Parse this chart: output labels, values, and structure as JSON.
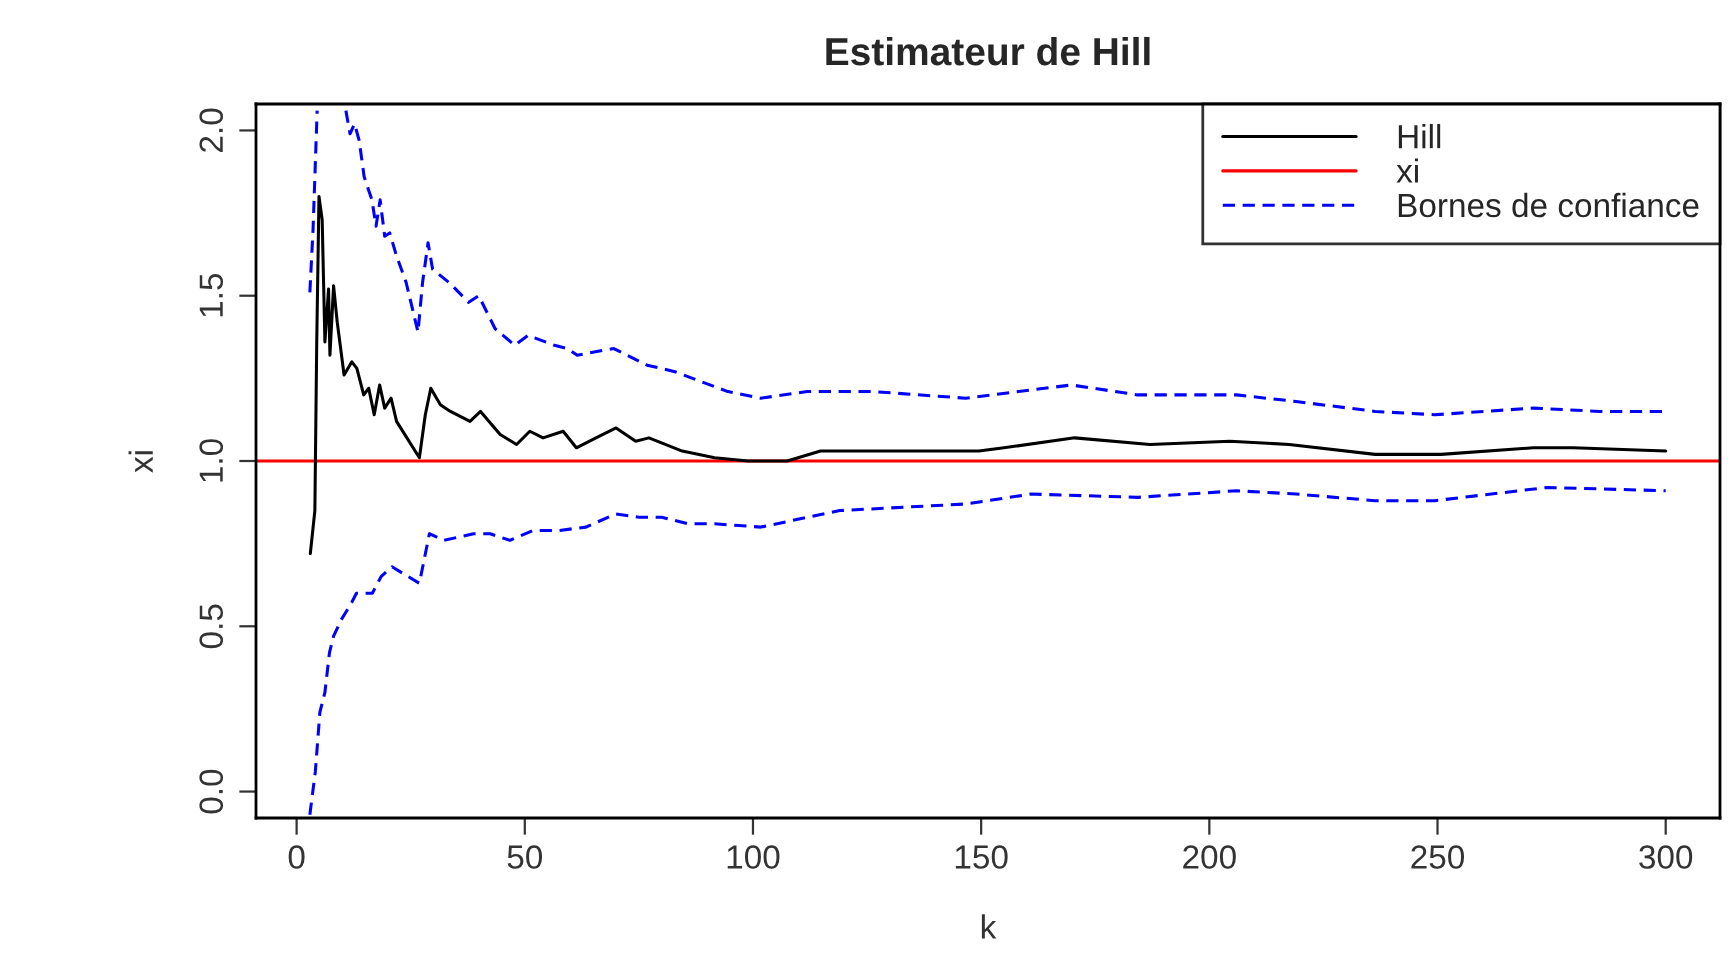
{
  "chart_data": {
    "type": "line",
    "title": "Estimateur de Hill",
    "xlabel": "k",
    "ylabel": "xi",
    "xlim": [
      -8.9,
      311.9
    ],
    "ylim": [
      -0.08,
      2.08
    ],
    "xticks": [
      0,
      50,
      100,
      150,
      200,
      250,
      300
    ],
    "yticks": [
      {
        "value": 0,
        "label": "0.0"
      },
      {
        "value": 0.5,
        "label": "0.5"
      },
      {
        "value": 1,
        "label": "1.0"
      },
      {
        "value": 1.5,
        "label": "1.5"
      },
      {
        "value": 2,
        "label": "2.0"
      }
    ],
    "grid": false,
    "legend": "top right",
    "ref_lines": [
      {
        "axis": "y",
        "value": 1,
        "label": "xi",
        "color": "#ff0000",
        "line_style": "solid"
      }
    ],
    "series": [
      {
        "name": "Hill",
        "color": "#000000",
        "line_style": "solid",
        "x": [
          3,
          4,
          4.4,
          4.9,
          5.6,
          6.2,
          7.0,
          7.3,
          8.1,
          8.9,
          10.4,
          12.1,
          13.2,
          14.7,
          15.8,
          17,
          18.2,
          19.3,
          20.7,
          21.9,
          26.9,
          28.2,
          29.4,
          31.5,
          33.7,
          38,
          40.3,
          44.6,
          48.2,
          51.1,
          54,
          58.4,
          61.3,
          65.6,
          70,
          74.3,
          77.2,
          84.5,
          91.6,
          98.9,
          107.5,
          114.8,
          132,
          149.5,
          155,
          170.5,
          187,
          204.5,
          217.5,
          236.3,
          250.8,
          271,
          279.7,
          300
        ],
        "values": [
          0.72,
          0.85,
          1.35,
          1.8,
          1.73,
          1.36,
          1.52,
          1.32,
          1.53,
          1.42,
          1.26,
          1.3,
          1.28,
          1.2,
          1.22,
          1.14,
          1.23,
          1.16,
          1.19,
          1.12,
          1.01,
          1.14,
          1.22,
          1.17,
          1.15,
          1.12,
          1.15,
          1.08,
          1.05,
          1.09,
          1.07,
          1.09,
          1.04,
          1.07,
          1.1,
          1.06,
          1.07,
          1.03,
          1.01,
          1.0,
          1.0,
          1.03,
          1.03,
          1.03,
          1.04,
          1.07,
          1.05,
          1.06,
          1.05,
          1.02,
          1.02,
          1.04,
          1.04,
          1.03
        ]
      },
      {
        "name": "Bornes de confiance",
        "color": "#0000ff",
        "line_style": "dashed",
        "x": [
          2.9,
          3.6,
          4.5,
          7,
          10.8,
          11.7,
          12.7,
          13.7,
          14.8,
          16.5,
          17.4,
          18.3,
          19.3,
          20.4,
          21.9,
          24,
          26.6,
          27.6,
          28.8,
          29.8,
          33.4,
          37.7,
          39.9,
          43.5,
          47.8,
          50.7,
          56.5,
          59.4,
          61.5,
          65.2,
          69.5,
          76.8,
          82.9,
          94.5,
          101.7,
          111.9,
          126.3,
          146.6,
          158.2,
          169.8,
          184.3,
          206,
          219,
          236.3,
          249.4,
          271,
          285.5,
          300
        ],
        "values": [
          1.51,
          1.7,
          2.06,
          null,
          2.06,
          1.99,
          2.02,
          1.97,
          1.86,
          1.79,
          1.71,
          1.79,
          1.68,
          1.69,
          1.62,
          1.54,
          1.39,
          1.54,
          1.66,
          1.58,
          1.54,
          1.48,
          1.5,
          1.4,
          1.35,
          1.38,
          1.35,
          1.34,
          1.32,
          1.33,
          1.34,
          1.29,
          1.27,
          1.21,
          1.19,
          1.21,
          1.21,
          1.19,
          1.21,
          1.23,
          1.2,
          1.2,
          1.18,
          1.15,
          1.14,
          1.16,
          1.15,
          1.15
        ]
      },
      {
        "color": "#0000ff",
        "line_style": "dashed",
        "x": [
          2.9,
          4.1,
          5.1,
          6.2,
          7.2,
          8.1,
          9.8,
          12,
          13.1,
          16.6,
          18.5,
          20.9,
          26.9,
          29.1,
          32.3,
          38.8,
          42.4,
          46.7,
          51.8,
          57.6,
          63.4,
          69.9,
          75,
          80,
          85.8,
          91.6,
          101.7,
          119,
          146.6,
          161,
          184.3,
          206,
          219,
          236.3,
          249.4,
          274,
          300
        ],
        "values": [
          -0.07,
          0.06,
          0.24,
          0.3,
          0.42,
          0.47,
          0.52,
          0.57,
          0.6,
          0.6,
          0.65,
          0.68,
          0.63,
          0.78,
          0.76,
          0.78,
          0.78,
          0.76,
          0.79,
          0.79,
          0.8,
          0.84,
          0.83,
          0.83,
          0.81,
          0.81,
          0.8,
          0.85,
          0.87,
          0.9,
          0.89,
          0.91,
          0.9,
          0.88,
          0.88,
          0.92,
          0.91
        ]
      }
    ]
  }
}
